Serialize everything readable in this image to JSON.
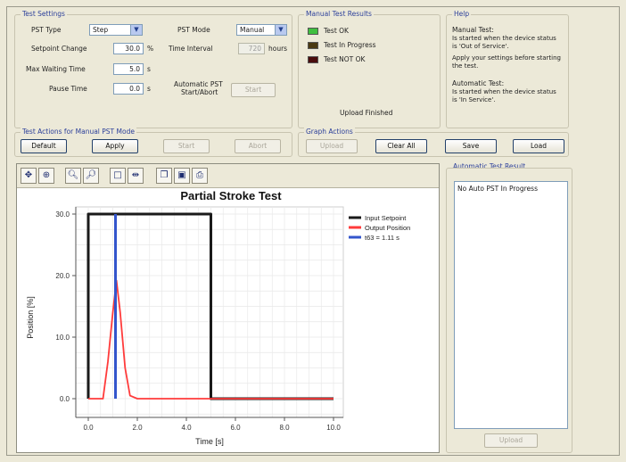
{
  "test_settings": {
    "title": "Test Settings",
    "pst_type_label": "PST Type",
    "pst_type_value": "Step",
    "pst_mode_label": "PST Mode",
    "pst_mode_value": "Manual",
    "setpoint_change_label": "Setpoint Change",
    "setpoint_change_value": "30.0",
    "setpoint_change_unit": "%",
    "time_interval_label": "Time Interval",
    "time_interval_value": "720",
    "time_interval_unit": "hours",
    "max_waiting_label": "Max Waiting Time",
    "max_waiting_value": "5.0",
    "max_waiting_unit": "s",
    "pause_time_label": "Pause Time",
    "pause_time_value": "0.0",
    "pause_time_unit": "s",
    "auto_pst_label_line1": "Automatic PST",
    "auto_pst_label_line2": "Start/Abort",
    "auto_pst_button": "Start"
  },
  "manual_results": {
    "title": "Manual Test Results",
    "items": [
      {
        "label": "Test OK",
        "color": "#3fbf3f"
      },
      {
        "label": "Test In Progress",
        "color": "#4a3a12"
      },
      {
        "label": "Test NOT OK",
        "color": "#4a0d0d"
      }
    ],
    "upload_status": "Upload Finished"
  },
  "help": {
    "title": "Help",
    "line1": "Manual Test:",
    "line2": "Is started when the device status",
    "line3": "is 'Out of Service'.",
    "line4": "Apply your settings before starting",
    "line5": "the test.",
    "line6": "Automatic Test:",
    "line7": "Is started when the device status",
    "line8": "is 'In Service'."
  },
  "test_actions": {
    "title": "Test Actions for Manual PST Mode",
    "default_label": "Default",
    "apply_label": "Apply",
    "start_label": "Start",
    "abort_label": "Abort"
  },
  "graph_actions": {
    "title": "Graph Actions",
    "upload_label": "Upload",
    "clear_all_label": "Clear All",
    "save_label": "Save",
    "load_label": "Load"
  },
  "auto_result": {
    "title": "Automatic Test Result",
    "message": "No Auto PST In Progress",
    "upload_label": "Upload"
  },
  "chart_data": {
    "type": "line",
    "title": "Partial Stroke Test",
    "xlabel": "Time [s]",
    "ylabel": "Position [%]",
    "xlim": [
      0,
      10.0
    ],
    "ylim": [
      0,
      30.0
    ],
    "xticks": [
      "0.0",
      "2.0",
      "4.0",
      "6.0",
      "8.0",
      "10.0"
    ],
    "yticks": [
      "0.0",
      "10.0",
      "20.0",
      "30.0"
    ],
    "grid": true,
    "legend_position": "top-right",
    "series": [
      {
        "name": "Input Setpoint",
        "color": "#1a1a1a",
        "x": [
          0.0,
          0.0,
          5.0,
          5.0,
          10.0
        ],
        "y": [
          0.0,
          30.0,
          30.0,
          0.0,
          0.0
        ]
      },
      {
        "name": "Output Position",
        "color": "#ff3b3b",
        "x": [
          0.0,
          0.6,
          0.8,
          1.0,
          1.15,
          1.3,
          1.5,
          1.7,
          2.0,
          5.0,
          10.0
        ],
        "y": [
          0.0,
          0.0,
          6.0,
          14.0,
          19.2,
          14.0,
          5.0,
          0.5,
          0.0,
          0.0,
          0.0
        ]
      },
      {
        "name": "t63 = 1.11 s",
        "color": "#3355cc",
        "x": [
          1.11,
          1.11
        ],
        "y": [
          0.0,
          30.0
        ]
      }
    ]
  },
  "toolbar_icons": [
    "pan-icon",
    "zoom-fit-icon",
    "zoom-in-icon",
    "zoom-out-icon",
    "select-icon",
    "cursor-icon",
    "copy-icon",
    "save-icon",
    "print-icon"
  ]
}
